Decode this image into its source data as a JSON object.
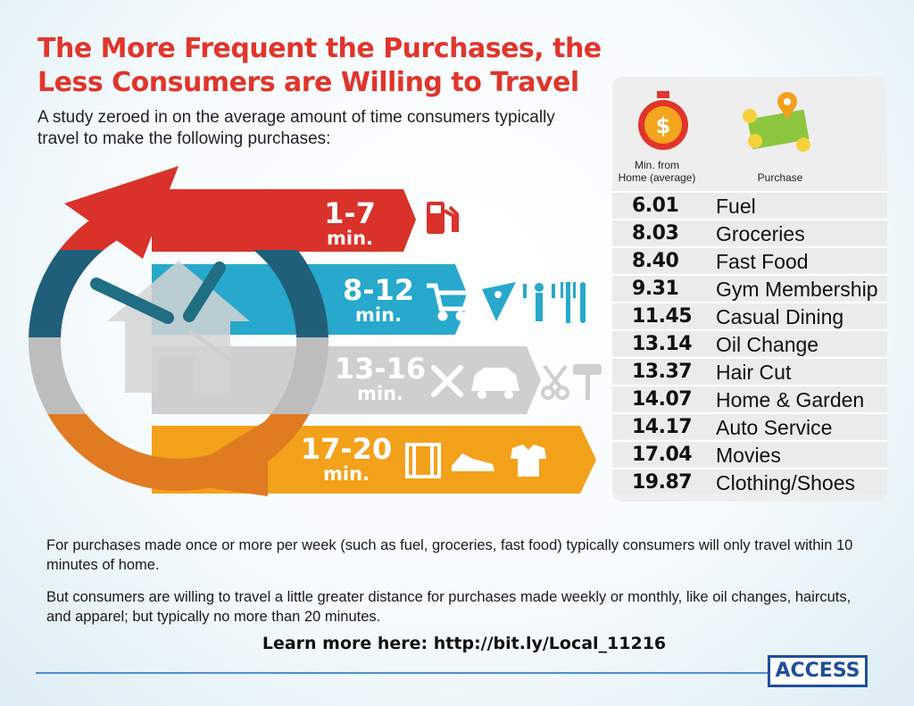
{
  "title_line1": "The More Frequent the Purchases, the",
  "title_line2": "Less Consumers are Willing to Travel",
  "subtitle": "A study zeroed in on the average amount of time consumers typically travel to make the following purchases:",
  "table": {
    "col1_line1": "Min. from",
    "col1_line2": "Home (average)",
    "col2": "Purchase"
  },
  "bands": [
    {
      "range": "1-7",
      "unit": "min.",
      "color": "#d9322a",
      "icons": [
        "fuel-pump-icon"
      ]
    },
    {
      "range": "8-12",
      "unit": "min.",
      "color": "#27a8cc",
      "icons": [
        "shopping-cart-icon",
        "pizza-slice-icon",
        "fitness-person-icon",
        "fork-knife-icon"
      ]
    },
    {
      "range": "13-16",
      "unit": "min.",
      "color": "#cccccc",
      "icons": [
        "tools-icon",
        "car-icon",
        "scissors-icon",
        "paint-roller-icon"
      ]
    },
    {
      "range": "17-20",
      "unit": "min.",
      "color": "#f3a11b",
      "icons": [
        "film-strip-icon",
        "sneaker-icon",
        "shirt-icon"
      ]
    }
  ],
  "chart_data": {
    "type": "table",
    "columns": [
      "Min. from Home (average)",
      "Purchase"
    ],
    "rows": [
      {
        "minutes": "6.01",
        "purchase": "Fuel"
      },
      {
        "minutes": "8.03",
        "purchase": "Groceries"
      },
      {
        "minutes": "8.40",
        "purchase": "Fast Food"
      },
      {
        "minutes": "9.31",
        "purchase": "Gym Membership"
      },
      {
        "minutes": "11.45",
        "purchase": "Casual Dining"
      },
      {
        "minutes": "13.14",
        "purchase": "Oil Change"
      },
      {
        "minutes": "13.37",
        "purchase": "Hair Cut"
      },
      {
        "minutes": "14.07",
        "purchase": "Home & Garden"
      },
      {
        "minutes": "14.17",
        "purchase": "Auto Service"
      },
      {
        "minutes": "17.04",
        "purchase": "Movies"
      },
      {
        "minutes": "19.87",
        "purchase": "Clothing/Shoes"
      }
    ]
  },
  "footer": {
    "para1": "For purchases made once or more per week (such as fuel, groceries, fast food) typically consumers will only travel within 10 minutes of home.",
    "para2": "But consumers are willing to travel a little greater distance for purchases made weekly or monthly, like oil changes, haircuts, and apparel; but typically no more than 20 minutes.",
    "learn_more": "Learn more here: http://bit.ly/Local_11216",
    "logo": "ACCESS"
  }
}
